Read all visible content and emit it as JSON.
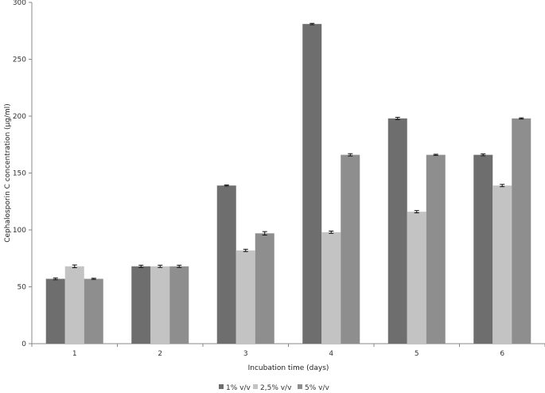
{
  "chart_data": {
    "type": "bar",
    "title": "",
    "xlabel": "Incubation  time  (days)",
    "ylabel": "Cephalosporin  C concentration  (µg/ml)",
    "categories": [
      "1",
      "2",
      "3",
      "4",
      "5",
      "6"
    ],
    "ylim": [
      0,
      300
    ],
    "yticks": [
      0,
      50,
      100,
      150,
      200,
      250,
      300
    ],
    "grid": false,
    "legend_position": "bottom",
    "series": [
      {
        "name": "1% v/v",
        "color": "#6e6e6e",
        "values": [
          57,
          68,
          139,
          281,
          198,
          166
        ],
        "errors": [
          0.8,
          1.0,
          0.5,
          0.6,
          1.0,
          0.8
        ]
      },
      {
        "name": "2,5% v/v",
        "color": "#c3c3c3",
        "values": [
          68,
          68,
          82,
          98,
          116,
          139
        ],
        "errors": [
          1.2,
          1.0,
          1.0,
          1.0,
          1.0,
          1.0
        ]
      },
      {
        "name": "5% v/v",
        "color": "#8e8e8e",
        "values": [
          57,
          68,
          97,
          166,
          166,
          198
        ],
        "errors": [
          0.5,
          1.0,
          1.5,
          1.0,
          0.5,
          0.5
        ]
      }
    ]
  }
}
